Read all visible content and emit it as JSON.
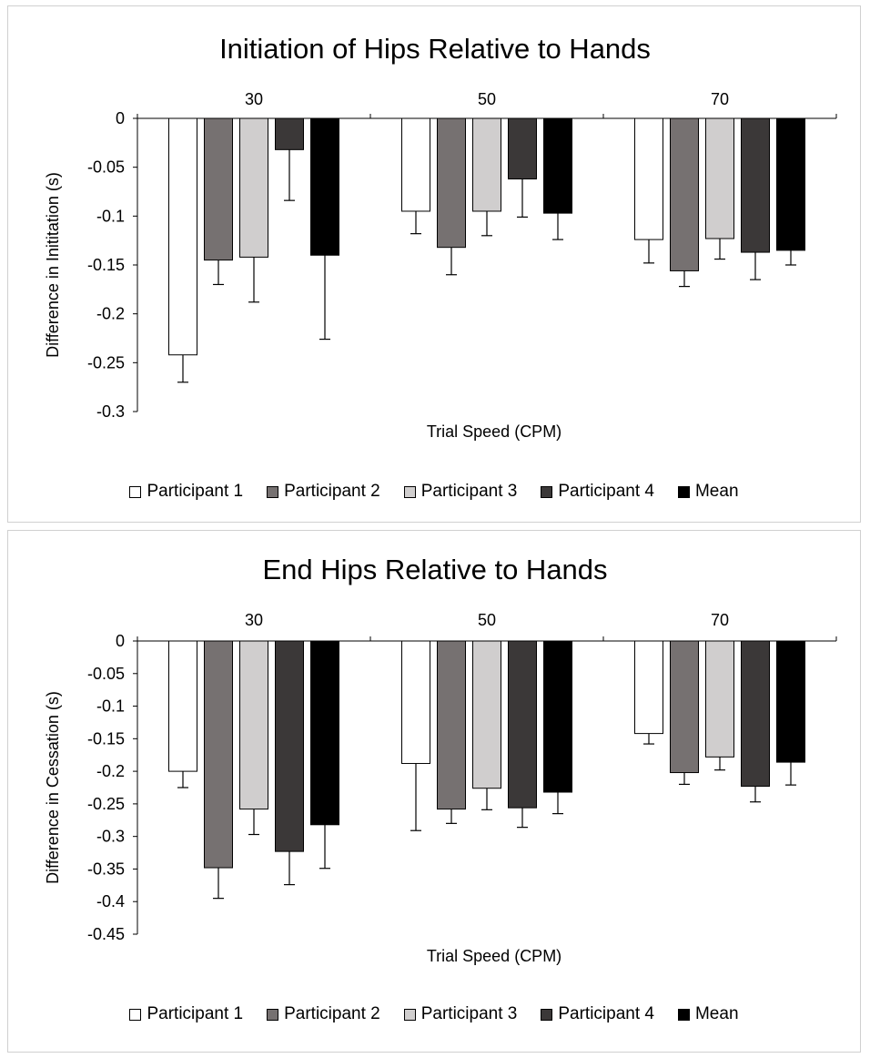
{
  "chart_data": [
    {
      "type": "bar",
      "title": "Initiation of Hips Relative to Hands",
      "xlabel": "Trial Speed (CPM)",
      "ylabel": "Difference in Inititation (s)",
      "categories": [
        "30",
        "50",
        "70"
      ],
      "ylim": [
        -0.3,
        0
      ],
      "yticks": [
        0,
        -0.05,
        -0.1,
        -0.15,
        -0.2,
        -0.25,
        -0.3
      ],
      "ytick_labels": [
        "0",
        "-0.05",
        "-0.1",
        "-0.15",
        "-0.2",
        "-0.25",
        "-0.3"
      ],
      "legend_position": "bottom",
      "grid": false,
      "series": [
        {
          "name": "Participant 1",
          "color": "#ffffff",
          "values": [
            -0.242,
            -0.095,
            -0.124
          ],
          "errors": [
            0.028,
            0.023,
            0.024
          ]
        },
        {
          "name": "Participant 2",
          "color": "#767171",
          "values": [
            -0.145,
            -0.132,
            -0.156
          ],
          "errors": [
            0.025,
            0.028,
            0.016
          ]
        },
        {
          "name": "Participant 3",
          "color": "#d0cece",
          "values": [
            -0.142,
            -0.095,
            -0.123
          ],
          "errors": [
            0.046,
            0.025,
            0.021
          ]
        },
        {
          "name": "Participant 4",
          "color": "#3b3838",
          "values": [
            -0.032,
            -0.062,
            -0.137
          ],
          "errors": [
            0.052,
            0.039,
            0.028
          ]
        },
        {
          "name": "Mean",
          "color": "#000000",
          "values": [
            -0.14,
            -0.097,
            -0.135
          ],
          "errors": [
            0.086,
            0.027,
            0.015
          ]
        }
      ]
    },
    {
      "type": "bar",
      "title": "End Hips Relative to Hands",
      "xlabel": "Trial Speed (CPM)",
      "ylabel": "Difference in Cessation (s)",
      "categories": [
        "30",
        "50",
        "70"
      ],
      "ylim": [
        -0.45,
        0
      ],
      "yticks": [
        0,
        -0.05,
        -0.1,
        -0.15,
        -0.2,
        -0.25,
        -0.3,
        -0.35,
        -0.4,
        -0.45
      ],
      "ytick_labels": [
        "0",
        "-0.05",
        "-0.1",
        "-0.15",
        "-0.2",
        "-0.25",
        "-0.3",
        "-0.35",
        "-0.4",
        "-0.45"
      ],
      "legend_position": "bottom",
      "grid": false,
      "series": [
        {
          "name": "Participant 1",
          "color": "#ffffff",
          "values": [
            -0.2,
            -0.188,
            -0.142
          ],
          "errors": [
            0.025,
            0.103,
            0.016
          ]
        },
        {
          "name": "Participant 2",
          "color": "#767171",
          "values": [
            -0.348,
            -0.258,
            -0.202
          ],
          "errors": [
            0.047,
            0.022,
            0.018
          ]
        },
        {
          "name": "Participant 3",
          "color": "#d0cece",
          "values": [
            -0.258,
            -0.226,
            -0.178
          ],
          "errors": [
            0.039,
            0.033,
            0.02
          ]
        },
        {
          "name": "Participant 4",
          "color": "#3b3838",
          "values": [
            -0.323,
            -0.256,
            -0.223
          ],
          "errors": [
            0.051,
            0.03,
            0.024
          ]
        },
        {
          "name": "Mean",
          "color": "#000000",
          "values": [
            -0.282,
            -0.232,
            -0.186
          ],
          "errors": [
            0.067,
            0.033,
            0.035
          ]
        }
      ]
    }
  ]
}
